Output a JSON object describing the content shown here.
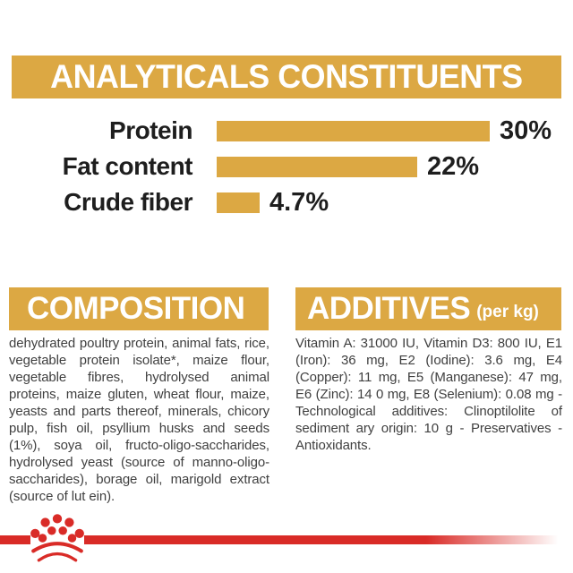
{
  "colors": {
    "gold": "#DCA843",
    "red": "#D92B27",
    "heading_text": "#FFFFFF",
    "chart_text": "#1E1E1E",
    "body_text": "#3F3F3F",
    "background": "#FFFFFF"
  },
  "chart_data": {
    "type": "bar",
    "orientation": "horizontal",
    "title": "ANALYTICALS CONSTITUENTS",
    "categories": [
      "Protein",
      "Fat content",
      "Crude fiber"
    ],
    "values": [
      30,
      22,
      4.7
    ],
    "value_labels": [
      "30%",
      "22%",
      "4.7%"
    ],
    "xlim": [
      0,
      30
    ],
    "bar_color": "#DCA843",
    "grid": false,
    "legend": false
  },
  "composition": {
    "title": "COMPOSITION",
    "body": "dehydrated poultry protein, animal fats, rice, vegetable protein isolate*, maize flour, vegetable fibres, hydrolysed animal proteins, maize gluten, wheat flour, maize, yeasts and parts thereof, minerals, chicory pulp, fish oil, psyllium husks and seeds (1%), soya oil, fructo-oligo-saccharides, hydrolysed yeast (source of manno-oligo-saccharides), borage oil, marigold extract (source of lut ein)."
  },
  "additives": {
    "title": "ADDITIVES",
    "title_suffix": "(per kg)",
    "body": "Vitamin A: 31000 IU, Vitamin D3: 800 IU, E1 (Iron): 36 mg, E2 (Iodine): 3.6 mg, E4 (Copper): 11 mg, E5 (Manganese): 47 mg, E6 (Zinc): 14 0 mg, E8 (Selenium): 0.08 mg -Technological additives: Clinoptilolite of sediment ary origin: 10 g - Preservatives - Antioxidants."
  },
  "footer": {
    "logo": "royal-canin-crown"
  }
}
